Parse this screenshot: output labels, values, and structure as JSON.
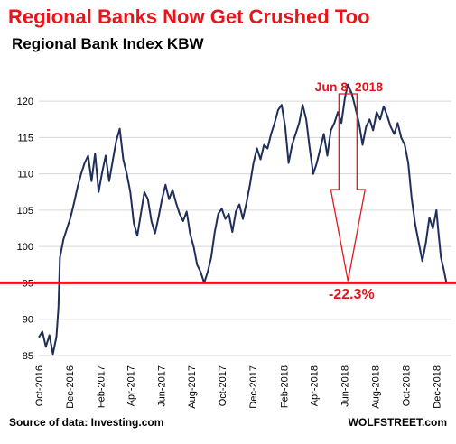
{
  "title": "Regional Banks Now Get Crushed Too",
  "subtitle": "Regional Bank Index KBW",
  "source": "Source of data: Investing.com",
  "brand": "WOLFSTREET.com",
  "colors": {
    "title": "#e8141c",
    "line": "#1f2f5a",
    "accent": "#e8141c",
    "grid": "#d6d6d6"
  },
  "chart_data": {
    "type": "line",
    "title": "Regional Bank Index KBW",
    "xlabel": "",
    "ylabel": "",
    "ylim": [
      84,
      123
    ],
    "yticks": [
      85,
      90,
      95,
      100,
      105,
      110,
      115,
      120
    ],
    "xlim": [
      "2016-10-01",
      "2018-12-31"
    ],
    "xticks": [
      {
        "date": "2016-10-01",
        "label": "Oct-2016"
      },
      {
        "date": "2016-12-01",
        "label": "Dec-2016"
      },
      {
        "date": "2017-02-01",
        "label": "Feb-2017"
      },
      {
        "date": "2017-04-01",
        "label": "Apr-2017"
      },
      {
        "date": "2017-06-01",
        "label": "Jun-2017"
      },
      {
        "date": "2017-08-01",
        "label": "Aug-2017"
      },
      {
        "date": "2017-10-01",
        "label": "Oct-2017"
      },
      {
        "date": "2017-12-01",
        "label": "Dec-2017"
      },
      {
        "date": "2018-02-01",
        "label": "Feb-2018"
      },
      {
        "date": "2018-04-01",
        "label": "Apr-2018"
      },
      {
        "date": "2018-06-01",
        "label": "Jun-2018"
      },
      {
        "date": "2018-08-01",
        "label": "Aug-2018"
      },
      {
        "date": "2018-10-01",
        "label": "Oct-2018"
      },
      {
        "date": "2018-12-01",
        "label": "Dec-2018"
      }
    ],
    "grid": "horizontal",
    "reference_line": {
      "y": 95
    },
    "annotations": {
      "peak_label": "Jun 8, 2018",
      "peak": {
        "date": "2018-06-08",
        "value": 122.3
      },
      "decline_label": "-22.3%"
    },
    "series": [
      {
        "points": [
          [
            "2016-10-01",
            87.5
          ],
          [
            "2016-10-08",
            88.3
          ],
          [
            "2016-10-15",
            86.2
          ],
          [
            "2016-10-22",
            87.8
          ],
          [
            "2016-10-29",
            85.2
          ],
          [
            "2016-11-05",
            87.6
          ],
          [
            "2016-11-09",
            91.5
          ],
          [
            "2016-11-12",
            98.5
          ],
          [
            "2016-11-19",
            101.0
          ],
          [
            "2016-11-26",
            102.5
          ],
          [
            "2016-12-03",
            104.0
          ],
          [
            "2016-12-10",
            106.0
          ],
          [
            "2016-12-17",
            108.2
          ],
          [
            "2016-12-24",
            110.0
          ],
          [
            "2016-12-31",
            111.5
          ],
          [
            "2017-01-07",
            112.5
          ],
          [
            "2017-01-14",
            109.0
          ],
          [
            "2017-01-21",
            112.8
          ],
          [
            "2017-01-28",
            107.5
          ],
          [
            "2017-02-04",
            110.2
          ],
          [
            "2017-02-11",
            112.5
          ],
          [
            "2017-02-18",
            109.0
          ],
          [
            "2017-02-25",
            111.8
          ],
          [
            "2017-03-04",
            114.5
          ],
          [
            "2017-03-11",
            116.2
          ],
          [
            "2017-03-18",
            112.0
          ],
          [
            "2017-03-25",
            110.0
          ],
          [
            "2017-04-01",
            107.5
          ],
          [
            "2017-04-08",
            103.2
          ],
          [
            "2017-04-15",
            101.5
          ],
          [
            "2017-04-22",
            104.5
          ],
          [
            "2017-04-29",
            107.5
          ],
          [
            "2017-05-06",
            106.5
          ],
          [
            "2017-05-13",
            103.5
          ],
          [
            "2017-05-20",
            101.8
          ],
          [
            "2017-05-27",
            104.0
          ],
          [
            "2017-06-03",
            106.5
          ],
          [
            "2017-06-10",
            108.5
          ],
          [
            "2017-06-17",
            106.5
          ],
          [
            "2017-06-24",
            107.8
          ],
          [
            "2017-07-01",
            106.0
          ],
          [
            "2017-07-08",
            104.5
          ],
          [
            "2017-07-15",
            103.5
          ],
          [
            "2017-07-22",
            104.8
          ],
          [
            "2017-07-29",
            101.8
          ],
          [
            "2017-08-05",
            100.0
          ],
          [
            "2017-08-12",
            97.5
          ],
          [
            "2017-08-19",
            96.5
          ],
          [
            "2017-08-26",
            95.0
          ],
          [
            "2017-09-02",
            96.5
          ],
          [
            "2017-09-09",
            98.5
          ],
          [
            "2017-09-16",
            102.0
          ],
          [
            "2017-09-23",
            104.5
          ],
          [
            "2017-09-30",
            105.2
          ],
          [
            "2017-10-07",
            103.8
          ],
          [
            "2017-10-14",
            104.5
          ],
          [
            "2017-10-21",
            102.0
          ],
          [
            "2017-10-28",
            104.8
          ],
          [
            "2017-11-04",
            105.8
          ],
          [
            "2017-11-11",
            103.8
          ],
          [
            "2017-11-18",
            106.0
          ],
          [
            "2017-11-25",
            108.5
          ],
          [
            "2017-12-02",
            111.5
          ],
          [
            "2017-12-09",
            113.5
          ],
          [
            "2017-12-16",
            112.0
          ],
          [
            "2017-12-23",
            114.0
          ],
          [
            "2017-12-30",
            113.5
          ],
          [
            "2018-01-06",
            115.5
          ],
          [
            "2018-01-13",
            117.0
          ],
          [
            "2018-01-20",
            118.8
          ],
          [
            "2018-01-27",
            119.5
          ],
          [
            "2018-02-03",
            116.5
          ],
          [
            "2018-02-10",
            111.5
          ],
          [
            "2018-02-17",
            114.0
          ],
          [
            "2018-02-24",
            115.5
          ],
          [
            "2018-03-03",
            117.0
          ],
          [
            "2018-03-10",
            119.5
          ],
          [
            "2018-03-17",
            117.5
          ],
          [
            "2018-03-24",
            113.5
          ],
          [
            "2018-03-31",
            110.0
          ],
          [
            "2018-04-07",
            111.5
          ],
          [
            "2018-04-14",
            113.5
          ],
          [
            "2018-04-21",
            115.5
          ],
          [
            "2018-04-28",
            112.5
          ],
          [
            "2018-05-05",
            116.0
          ],
          [
            "2018-05-12",
            117.0
          ],
          [
            "2018-05-19",
            118.5
          ],
          [
            "2018-05-26",
            117.0
          ],
          [
            "2018-06-02",
            120.5
          ],
          [
            "2018-06-08",
            122.3
          ],
          [
            "2018-06-16",
            121.0
          ],
          [
            "2018-06-23",
            119.0
          ],
          [
            "2018-06-30",
            117.0
          ],
          [
            "2018-07-07",
            114.0
          ],
          [
            "2018-07-14",
            116.5
          ],
          [
            "2018-07-21",
            117.5
          ],
          [
            "2018-07-28",
            116.0
          ],
          [
            "2018-08-04",
            118.5
          ],
          [
            "2018-08-11",
            117.5
          ],
          [
            "2018-08-18",
            119.3
          ],
          [
            "2018-08-25",
            118.0
          ],
          [
            "2018-09-01",
            116.5
          ],
          [
            "2018-09-08",
            115.5
          ],
          [
            "2018-09-15",
            117.0
          ],
          [
            "2018-09-22",
            115.0
          ],
          [
            "2018-09-29",
            114.0
          ],
          [
            "2018-10-06",
            111.5
          ],
          [
            "2018-10-13",
            106.5
          ],
          [
            "2018-10-20",
            103.0
          ],
          [
            "2018-10-27",
            100.5
          ],
          [
            "2018-11-03",
            98.0
          ],
          [
            "2018-11-10",
            100.5
          ],
          [
            "2018-11-17",
            104.0
          ],
          [
            "2018-11-24",
            102.5
          ],
          [
            "2018-12-01",
            105.0
          ],
          [
            "2018-12-05",
            102.0
          ],
          [
            "2018-12-10",
            98.5
          ],
          [
            "2018-12-15",
            97.0
          ],
          [
            "2018-12-21",
            95.0
          ]
        ]
      }
    ]
  }
}
